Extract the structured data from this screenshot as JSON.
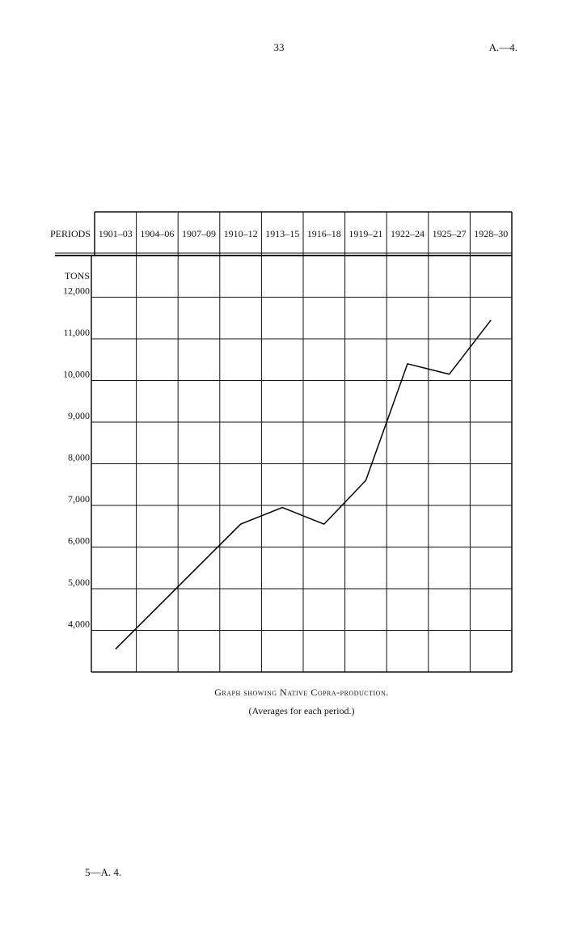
{
  "page": {
    "page_number": "33",
    "doc_ref": "A.—4.",
    "footer": "5—A. 4."
  },
  "chart_data": {
    "type": "line",
    "category_label": "PERIODS",
    "y_axis_label": "TONS",
    "categories": [
      "1901–03",
      "1904–06",
      "1907–09",
      "1910–12",
      "1913–15",
      "1916–18",
      "1919–21",
      "1922–24",
      "1925–27",
      "1928–30"
    ],
    "values": [
      3550,
      4550,
      5550,
      6550,
      6950,
      6550,
      7600,
      10400,
      10150,
      11450
    ],
    "color": "#000000",
    "ylim": [
      3000,
      13000
    ],
    "yticks": [
      {
        "value": 4000,
        "label": "4,000"
      },
      {
        "value": 5000,
        "label": "5,000"
      },
      {
        "value": 6000,
        "label": "6,000"
      },
      {
        "value": 7000,
        "label": "7,000"
      },
      {
        "value": 8000,
        "label": "8,000"
      },
      {
        "value": 9000,
        "label": "9,000"
      },
      {
        "value": 10000,
        "label": "10,000"
      },
      {
        "value": 11000,
        "label": "11,000"
      },
      {
        "value": 12000,
        "label": "12,000"
      }
    ],
    "grid": true,
    "caption": "Graph showing Native Copra-production.",
    "subcaption": "(Averages for each period.)"
  }
}
